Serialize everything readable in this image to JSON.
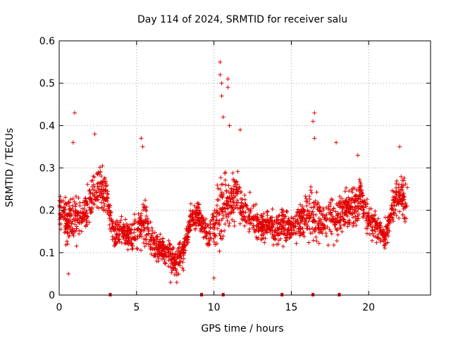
{
  "chart_data": {
    "type": "scatter",
    "title": "Day 114 of 2024, SRMTID for receiver salu",
    "xlabel": "GPS time / hours",
    "ylabel": "SRMTID / TECUs",
    "xlim": [
      0,
      24
    ],
    "ylim": [
      0,
      0.6
    ],
    "x_ticks": [
      0,
      5,
      10,
      15,
      20
    ],
    "y_ticks": [
      0,
      0.1,
      0.2,
      0.3,
      0.4,
      0.5,
      0.6
    ],
    "x_tick_labels": [
      "0",
      "5",
      "10",
      "15",
      "20"
    ],
    "y_tick_labels": [
      "0",
      "0.1",
      "0.2",
      "0.3",
      "0.4",
      "0.5",
      "0.6"
    ],
    "marker": "+",
    "color": "#e00000",
    "grid": true,
    "data_gap_markers_x": [
      3.3,
      9.2,
      10.6,
      14.4,
      16.4,
      18.1
    ],
    "series_envelope": {
      "description": "Approximate median and spread of the scatter per time segment",
      "x": [
        0.0,
        0.5,
        1.0,
        1.5,
        2.0,
        2.5,
        3.0,
        3.5,
        4.0,
        4.5,
        5.0,
        5.5,
        6.0,
        6.5,
        7.0,
        7.5,
        8.0,
        8.5,
        9.0,
        9.5,
        10.0,
        10.5,
        11.0,
        11.5,
        12.0,
        12.5,
        13.0,
        13.5,
        14.0,
        14.5,
        15.0,
        15.5,
        16.0,
        16.5,
        17.0,
        17.5,
        18.0,
        18.5,
        19.0,
        19.5,
        20.0,
        20.5,
        21.0,
        21.5,
        22.0,
        22.5
      ],
      "median": [
        0.2,
        0.17,
        0.18,
        0.19,
        0.21,
        0.26,
        0.24,
        0.15,
        0.15,
        0.14,
        0.15,
        0.18,
        0.12,
        0.11,
        0.1,
        0.08,
        0.1,
        0.18,
        0.19,
        0.15,
        0.16,
        0.21,
        0.22,
        0.24,
        0.19,
        0.18,
        0.16,
        0.17,
        0.16,
        0.16,
        0.16,
        0.17,
        0.19,
        0.2,
        0.16,
        0.19,
        0.17,
        0.2,
        0.21,
        0.23,
        0.18,
        0.16,
        0.13,
        0.2,
        0.24,
        0.22
      ],
      "spread": [
        0.05,
        0.06,
        0.06,
        0.05,
        0.06,
        0.07,
        0.06,
        0.04,
        0.04,
        0.04,
        0.06,
        0.07,
        0.04,
        0.04,
        0.04,
        0.04,
        0.04,
        0.04,
        0.04,
        0.05,
        0.05,
        0.1,
        0.06,
        0.07,
        0.05,
        0.05,
        0.04,
        0.04,
        0.05,
        0.05,
        0.04,
        0.05,
        0.06,
        0.08,
        0.05,
        0.06,
        0.06,
        0.05,
        0.06,
        0.05,
        0.05,
        0.04,
        0.04,
        0.05,
        0.06,
        0.06
      ]
    },
    "outliers": [
      {
        "x": 1.0,
        "y": 0.43
      },
      {
        "x": 0.9,
        "y": 0.36
      },
      {
        "x": 2.3,
        "y": 0.38
      },
      {
        "x": 5.3,
        "y": 0.37
      },
      {
        "x": 5.4,
        "y": 0.35
      },
      {
        "x": 10.4,
        "y": 0.55
      },
      {
        "x": 10.4,
        "y": 0.52
      },
      {
        "x": 10.9,
        "y": 0.51
      },
      {
        "x": 10.5,
        "y": 0.5
      },
      {
        "x": 10.9,
        "y": 0.49
      },
      {
        "x": 10.5,
        "y": 0.47
      },
      {
        "x": 10.6,
        "y": 0.42
      },
      {
        "x": 11.0,
        "y": 0.4
      },
      {
        "x": 11.7,
        "y": 0.39
      },
      {
        "x": 16.5,
        "y": 0.43
      },
      {
        "x": 16.4,
        "y": 0.41
      },
      {
        "x": 16.5,
        "y": 0.37
      },
      {
        "x": 17.9,
        "y": 0.36
      },
      {
        "x": 19.3,
        "y": 0.33
      },
      {
        "x": 22.0,
        "y": 0.35
      },
      {
        "x": 7.2,
        "y": 0.03
      },
      {
        "x": 7.6,
        "y": 0.03
      },
      {
        "x": 10.0,
        "y": 0.04
      },
      {
        "x": 0.6,
        "y": 0.05
      }
    ]
  }
}
